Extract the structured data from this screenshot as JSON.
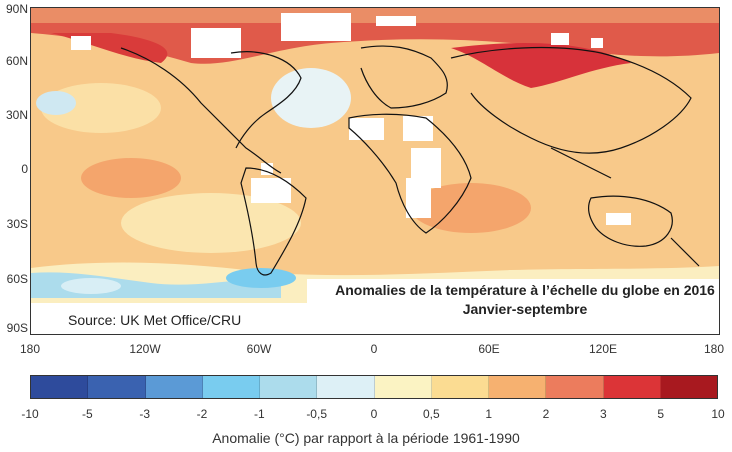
{
  "map": {
    "title_line1": "Anomalies de la température à l’échelle du globe en 2016",
    "title_line2": "Janvier-septembre",
    "source": "Source: UK Met Office/CRU",
    "lat_labels": [
      "90N",
      "60N",
      "30N",
      "0",
      "30S",
      "60S",
      "90S"
    ],
    "lon_labels": [
      "180",
      "120W",
      "60W",
      "0",
      "60E",
      "120E",
      "180"
    ]
  },
  "legend": {
    "ticks": [
      "-10",
      "-5",
      "-3",
      "-2",
      "-1",
      "-0,5",
      "0",
      "0,5",
      "1",
      "2",
      "3",
      "5",
      "10"
    ],
    "colors": [
      "#2e4b9c",
      "#3a62b0",
      "#5b9ad6",
      "#79ccef",
      "#acdcec",
      "#ddf0f6",
      "#fbf3c3",
      "#fbdc92",
      "#f6b170",
      "#ec7c5d",
      "#dc3437",
      "#a8191f"
    ],
    "caption": "Anomalie (°C) par rapport à la période 1961-1990"
  }
}
